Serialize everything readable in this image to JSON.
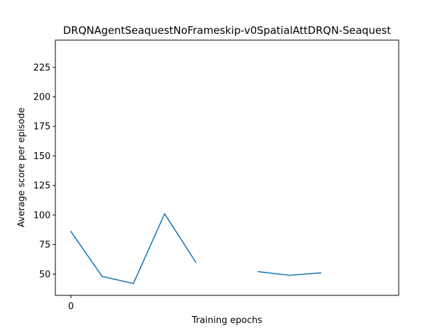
{
  "chart_data": {
    "type": "line",
    "title": "DRQNAgentSeaquestNoFrameskip-v0SpatialAttDRQN-Seaquest",
    "xlabel": "Training epochs",
    "ylabel": "Average score per episode",
    "xlim": [
      -0.5,
      10.5
    ],
    "ylim": [
      32,
      248
    ],
    "xticks": [
      0
    ],
    "yticks": [
      50,
      75,
      100,
      125,
      150,
      175,
      200,
      225
    ],
    "grid": false,
    "legend": "none",
    "colors": {
      "series": "#1f77b4"
    },
    "series": [
      {
        "x": [
          0,
          1,
          2,
          3,
          4,
          5,
          6,
          7,
          8
        ],
        "y": [
          86,
          48,
          42,
          101,
          60,
          null,
          52,
          49,
          51
        ]
      }
    ]
  }
}
